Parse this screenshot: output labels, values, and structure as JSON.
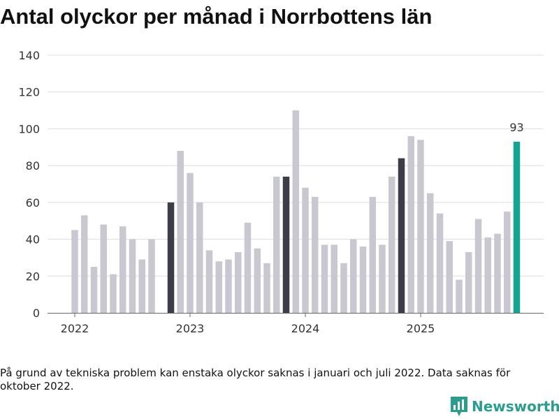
{
  "chart_data": {
    "type": "bar",
    "title": "Antal olyckor per månad i Norrbottens län",
    "xlabel": "",
    "ylabel": "",
    "ylim": [
      0,
      140
    ],
    "yticks": [
      0,
      20,
      40,
      60,
      80,
      100,
      120,
      140
    ],
    "xticks": [
      "2022",
      "2023",
      "2024",
      "2025"
    ],
    "grid": true,
    "series": [
      {
        "name": "Olyckor",
        "values": [
          45,
          53,
          25,
          48,
          21,
          47,
          40,
          29,
          40,
          null,
          60,
          88,
          76,
          60,
          34,
          28,
          29,
          33,
          49,
          35,
          27,
          74,
          74,
          110,
          68,
          63,
          37,
          37,
          27,
          40,
          36,
          63,
          37,
          74,
          84,
          96,
          94,
          65,
          54,
          39,
          18,
          33,
          51,
          41,
          43,
          55,
          93
        ]
      }
    ],
    "highlighted_months": [
      10,
      22,
      34
    ],
    "last_value_label": "93",
    "colors": {
      "default": "#c9c8d1",
      "highlight": "#3d3d4a",
      "latest": "#16a394",
      "brand": "#2a9d8f"
    }
  },
  "footnote": "På grund av tekniska problem kan enstaka olyckor saknas i januari och juli 2022. Data saknas för oktober 2022.",
  "brand": {
    "name": "Newsworthy",
    "icon": "bar-chart-logo-icon"
  }
}
